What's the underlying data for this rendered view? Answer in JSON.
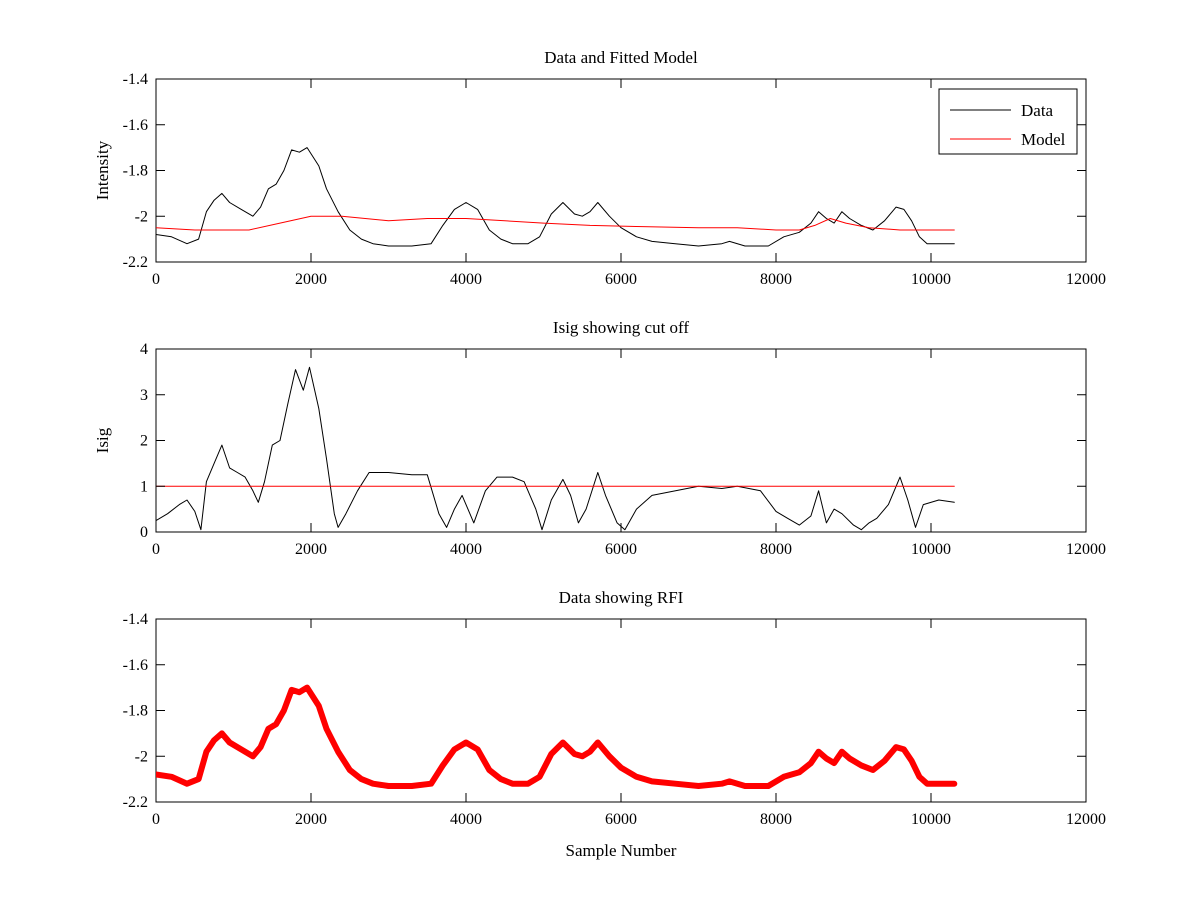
{
  "chart_data": [
    {
      "type": "line",
      "title": "Data and Fitted Model",
      "xlabel": "",
      "ylabel": "Intensity",
      "xlim": [
        0,
        12000
      ],
      "ylim": [
        -2.2,
        -1.4
      ],
      "xticks": [
        0,
        2000,
        4000,
        6000,
        8000,
        10000,
        12000
      ],
      "xtick_labels": [
        "0",
        "2000",
        "4000",
        "6000",
        "8000",
        "10000",
        "12000"
      ],
      "yticks": [
        -2.2,
        -2,
        -1.8,
        -1.6,
        -1.4
      ],
      "ytick_labels": [
        "-2.2",
        "-2",
        "-1.8",
        "-1.6",
        "-1.4"
      ],
      "grid": false,
      "legend": {
        "position": "top-right",
        "entries": [
          "Data",
          "Model"
        ]
      },
      "series": [
        {
          "name": "Data",
          "color": "#000000",
          "width": 1,
          "points": [
            [
              0,
              -2.08
            ],
            [
              200,
              -2.09
            ],
            [
              400,
              -2.12
            ],
            [
              550,
              -2.1
            ],
            [
              650,
              -1.98
            ],
            [
              750,
              -1.93
            ],
            [
              850,
              -1.9
            ],
            [
              950,
              -1.94
            ],
            [
              1100,
              -1.97
            ],
            [
              1250,
              -2.0
            ],
            [
              1350,
              -1.96
            ],
            [
              1450,
              -1.88
            ],
            [
              1550,
              -1.86
            ],
            [
              1650,
              -1.8
            ],
            [
              1750,
              -1.71
            ],
            [
              1850,
              -1.72
            ],
            [
              1950,
              -1.7
            ],
            [
              2100,
              -1.78
            ],
            [
              2200,
              -1.88
            ],
            [
              2350,
              -1.98
            ],
            [
              2500,
              -2.06
            ],
            [
              2650,
              -2.1
            ],
            [
              2800,
              -2.12
            ],
            [
              3000,
              -2.13
            ],
            [
              3300,
              -2.13
            ],
            [
              3550,
              -2.12
            ],
            [
              3700,
              -2.04
            ],
            [
              3850,
              -1.97
            ],
            [
              4000,
              -1.94
            ],
            [
              4150,
              -1.97
            ],
            [
              4300,
              -2.06
            ],
            [
              4450,
              -2.1
            ],
            [
              4600,
              -2.12
            ],
            [
              4800,
              -2.12
            ],
            [
              4950,
              -2.09
            ],
            [
              5100,
              -1.99
            ],
            [
              5250,
              -1.94
            ],
            [
              5400,
              -1.99
            ],
            [
              5500,
              -2.0
            ],
            [
              5600,
              -1.98
            ],
            [
              5700,
              -1.94
            ],
            [
              5850,
              -2.0
            ],
            [
              6000,
              -2.05
            ],
            [
              6200,
              -2.09
            ],
            [
              6400,
              -2.11
            ],
            [
              6700,
              -2.12
            ],
            [
              7000,
              -2.13
            ],
            [
              7300,
              -2.12
            ],
            [
              7400,
              -2.11
            ],
            [
              7600,
              -2.13
            ],
            [
              7900,
              -2.13
            ],
            [
              8100,
              -2.09
            ],
            [
              8300,
              -2.07
            ],
            [
              8450,
              -2.03
            ],
            [
              8550,
              -1.98
            ],
            [
              8650,
              -2.01
            ],
            [
              8750,
              -2.03
            ],
            [
              8850,
              -1.98
            ],
            [
              8950,
              -2.01
            ],
            [
              9100,
              -2.04
            ],
            [
              9250,
              -2.06
            ],
            [
              9400,
              -2.02
            ],
            [
              9550,
              -1.96
            ],
            [
              9650,
              -1.97
            ],
            [
              9750,
              -2.02
            ],
            [
              9850,
              -2.09
            ],
            [
              9950,
              -2.12
            ],
            [
              10300,
              -2.12
            ]
          ]
        },
        {
          "name": "Model",
          "color": "#ff0000",
          "width": 1,
          "points": [
            [
              0,
              -2.05
            ],
            [
              500,
              -2.06
            ],
            [
              1200,
              -2.06
            ],
            [
              1600,
              -2.03
            ],
            [
              2000,
              -2.0
            ],
            [
              2400,
              -2.0
            ],
            [
              3000,
              -2.02
            ],
            [
              3500,
              -2.01
            ],
            [
              4000,
              -2.01
            ],
            [
              4500,
              -2.02
            ],
            [
              5000,
              -2.03
            ],
            [
              5600,
              -2.04
            ],
            [
              6200,
              -2.045
            ],
            [
              7000,
              -2.05
            ],
            [
              7500,
              -2.05
            ],
            [
              8000,
              -2.06
            ],
            [
              8300,
              -2.06
            ],
            [
              8500,
              -2.04
            ],
            [
              8700,
              -2.01
            ],
            [
              8900,
              -2.03
            ],
            [
              9200,
              -2.05
            ],
            [
              9600,
              -2.06
            ],
            [
              10300,
              -2.06
            ]
          ]
        }
      ]
    },
    {
      "type": "line",
      "title": "Isig showing cut off",
      "xlabel": "",
      "ylabel": "Isig",
      "xlim": [
        0,
        12000
      ],
      "ylim": [
        0,
        4
      ],
      "xticks": [
        0,
        2000,
        4000,
        6000,
        8000,
        10000,
        12000
      ],
      "xtick_labels": [
        "0",
        "2000",
        "4000",
        "6000",
        "8000",
        "10000",
        "12000"
      ],
      "yticks": [
        0,
        1,
        2,
        3,
        4
      ],
      "ytick_labels": [
        "0",
        "1",
        "2",
        "3",
        "4"
      ],
      "grid": false,
      "series": [
        {
          "name": "",
          "color": "#000000",
          "width": 1,
          "points": [
            [
              0,
              0.25
            ],
            [
              150,
              0.4
            ],
            [
              300,
              0.6
            ],
            [
              400,
              0.7
            ],
            [
              500,
              0.45
            ],
            [
              580,
              0.05
            ],
            [
              650,
              1.1
            ],
            [
              750,
              1.5
            ],
            [
              850,
              1.9
            ],
            [
              950,
              1.4
            ],
            [
              1050,
              1.3
            ],
            [
              1150,
              1.2
            ],
            [
              1250,
              0.9
            ],
            [
              1320,
              0.65
            ],
            [
              1400,
              1.1
            ],
            [
              1500,
              1.9
            ],
            [
              1600,
              2.0
            ],
            [
              1700,
              2.8
            ],
            [
              1800,
              3.55
            ],
            [
              1900,
              3.1
            ],
            [
              1980,
              3.6
            ],
            [
              2100,
              2.7
            ],
            [
              2200,
              1.6
            ],
            [
              2300,
              0.4
            ],
            [
              2350,
              0.1
            ],
            [
              2450,
              0.4
            ],
            [
              2600,
              0.9
            ],
            [
              2750,
              1.3
            ],
            [
              3000,
              1.3
            ],
            [
              3300,
              1.25
            ],
            [
              3500,
              1.25
            ],
            [
              3650,
              0.4
            ],
            [
              3750,
              0.1
            ],
            [
              3850,
              0.5
            ],
            [
              3950,
              0.8
            ],
            [
              4050,
              0.4
            ],
            [
              4100,
              0.2
            ],
            [
              4250,
              0.9
            ],
            [
              4400,
              1.2
            ],
            [
              4600,
              1.2
            ],
            [
              4750,
              1.1
            ],
            [
              4900,
              0.5
            ],
            [
              4980,
              0.05
            ],
            [
              5100,
              0.7
            ],
            [
              5250,
              1.15
            ],
            [
              5350,
              0.8
            ],
            [
              5450,
              0.2
            ],
            [
              5550,
              0.5
            ],
            [
              5700,
              1.3
            ],
            [
              5800,
              0.8
            ],
            [
              5950,
              0.2
            ],
            [
              6050,
              0.05
            ],
            [
              6200,
              0.5
            ],
            [
              6400,
              0.8
            ],
            [
              7000,
              1.0
            ],
            [
              7300,
              0.95
            ],
            [
              7500,
              1.0
            ],
            [
              7800,
              0.9
            ],
            [
              8000,
              0.45
            ],
            [
              8150,
              0.3
            ],
            [
              8300,
              0.15
            ],
            [
              8450,
              0.35
            ],
            [
              8550,
              0.9
            ],
            [
              8650,
              0.2
            ],
            [
              8750,
              0.5
            ],
            [
              8850,
              0.4
            ],
            [
              9000,
              0.15
            ],
            [
              9100,
              0.05
            ],
            [
              9200,
              0.2
            ],
            [
              9300,
              0.3
            ],
            [
              9450,
              0.6
            ],
            [
              9600,
              1.2
            ],
            [
              9700,
              0.7
            ],
            [
              9800,
              0.1
            ],
            [
              9900,
              0.6
            ],
            [
              10100,
              0.7
            ],
            [
              10300,
              0.65
            ]
          ]
        },
        {
          "name": "",
          "color": "#ff0000",
          "width": 1,
          "points": [
            [
              0,
              1
            ],
            [
              10300,
              1
            ]
          ]
        }
      ]
    },
    {
      "type": "line",
      "title": "Data showing RFI",
      "xlabel": "Sample Number",
      "ylabel": "",
      "xlim": [
        0,
        12000
      ],
      "ylim": [
        -2.2,
        -1.4
      ],
      "xticks": [
        0,
        2000,
        4000,
        6000,
        8000,
        10000,
        12000
      ],
      "xtick_labels": [
        "0",
        "2000",
        "4000",
        "6000",
        "8000",
        "10000",
        "12000"
      ],
      "yticks": [
        -2.2,
        -2,
        -1.8,
        -1.6,
        -1.4
      ],
      "ytick_labels": [
        "-2.2",
        "-2",
        "-1.8",
        "-1.6",
        "-1.4"
      ],
      "grid": false,
      "series": [
        {
          "name": "",
          "color": "#ff0000",
          "width": 6,
          "points": [
            [
              0,
              -2.08
            ],
            [
              200,
              -2.09
            ],
            [
              400,
              -2.12
            ],
            [
              550,
              -2.1
            ],
            [
              650,
              -1.98
            ],
            [
              750,
              -1.93
            ],
            [
              850,
              -1.9
            ],
            [
              950,
              -1.94
            ],
            [
              1100,
              -1.97
            ],
            [
              1250,
              -2.0
            ],
            [
              1350,
              -1.96
            ],
            [
              1450,
              -1.88
            ],
            [
              1550,
              -1.86
            ],
            [
              1650,
              -1.8
            ],
            [
              1750,
              -1.71
            ],
            [
              1850,
              -1.72
            ],
            [
              1950,
              -1.7
            ],
            [
              2100,
              -1.78
            ],
            [
              2200,
              -1.88
            ],
            [
              2350,
              -1.98
            ],
            [
              2500,
              -2.06
            ],
            [
              2650,
              -2.1
            ],
            [
              2800,
              -2.12
            ],
            [
              3000,
              -2.13
            ],
            [
              3300,
              -2.13
            ],
            [
              3550,
              -2.12
            ],
            [
              3700,
              -2.04
            ],
            [
              3850,
              -1.97
            ],
            [
              4000,
              -1.94
            ],
            [
              4150,
              -1.97
            ],
            [
              4300,
              -2.06
            ],
            [
              4450,
              -2.1
            ],
            [
              4600,
              -2.12
            ],
            [
              4800,
              -2.12
            ],
            [
              4950,
              -2.09
            ],
            [
              5100,
              -1.99
            ],
            [
              5250,
              -1.94
            ],
            [
              5400,
              -1.99
            ],
            [
              5500,
              -2.0
            ],
            [
              5600,
              -1.98
            ],
            [
              5700,
              -1.94
            ],
            [
              5850,
              -2.0
            ],
            [
              6000,
              -2.05
            ],
            [
              6200,
              -2.09
            ],
            [
              6400,
              -2.11
            ],
            [
              6700,
              -2.12
            ],
            [
              7000,
              -2.13
            ],
            [
              7300,
              -2.12
            ],
            [
              7400,
              -2.11
            ],
            [
              7600,
              -2.13
            ],
            [
              7900,
              -2.13
            ],
            [
              8100,
              -2.09
            ],
            [
              8300,
              -2.07
            ],
            [
              8450,
              -2.03
            ],
            [
              8550,
              -1.98
            ],
            [
              8650,
              -2.01
            ],
            [
              8750,
              -2.03
            ],
            [
              8850,
              -1.98
            ],
            [
              8950,
              -2.01
            ],
            [
              9100,
              -2.04
            ],
            [
              9250,
              -2.06
            ],
            [
              9400,
              -2.02
            ],
            [
              9550,
              -1.96
            ],
            [
              9650,
              -1.97
            ],
            [
              9750,
              -2.02
            ],
            [
              9850,
              -2.09
            ],
            [
              9950,
              -2.12
            ],
            [
              10300,
              -2.12
            ]
          ]
        }
      ]
    }
  ]
}
